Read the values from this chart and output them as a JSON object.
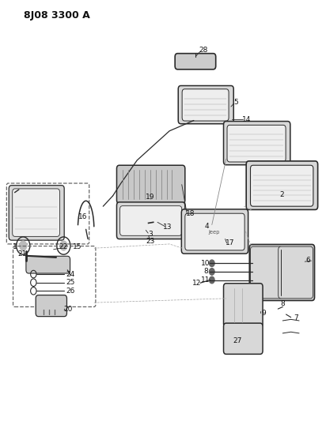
{
  "title": "8J08 3300 A",
  "bg_color": "#ffffff",
  "line_color": "#2a2a2a",
  "text_color": "#111111",
  "figsize": [
    4.12,
    5.33
  ],
  "dpi": 100
}
